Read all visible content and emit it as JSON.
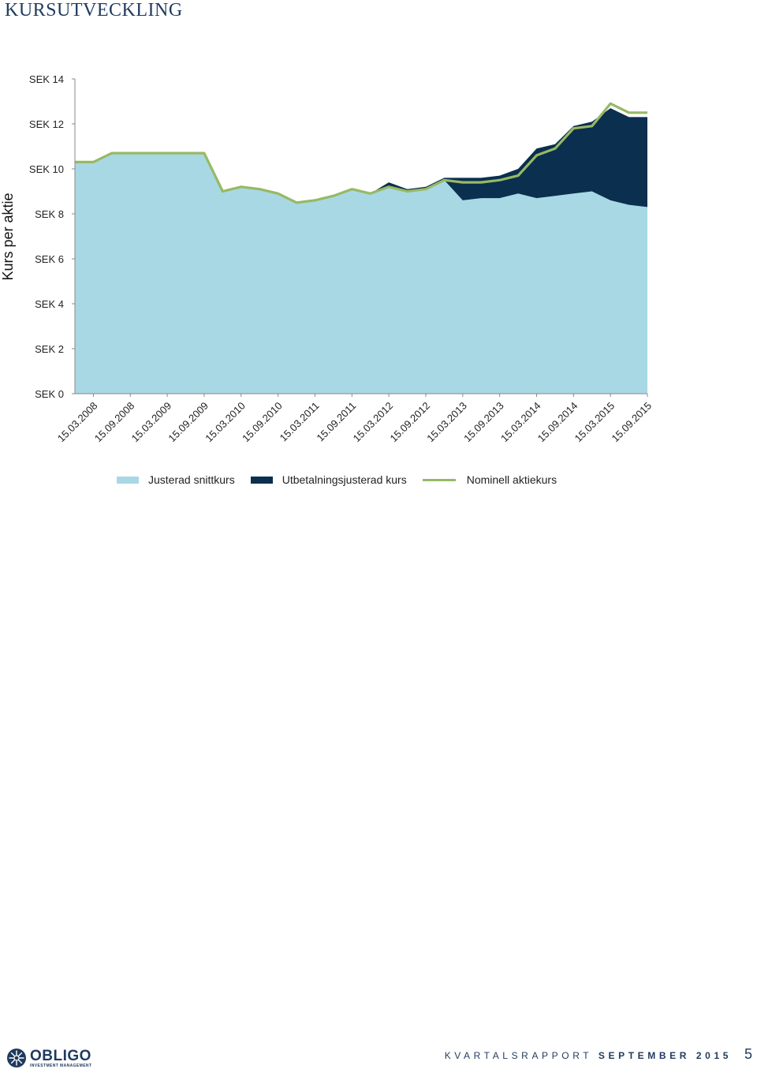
{
  "page": {
    "title": "KURSUTVECKLING",
    "footer_report_light": "KVARTALSRAPPORT",
    "footer_report_bold": "SEPTEMBER 2015",
    "page_number": "5",
    "logo_word": "OBLIGO",
    "logo_sub": "INVESTMENT MANAGEMENT"
  },
  "colors": {
    "adjusted_avg": "#a8d8e4",
    "payout_adjusted": "#0b2f4e",
    "nominal": "#97b964",
    "axis": "#888888",
    "brand": "#1f3a5f"
  },
  "chart_data": {
    "type": "area",
    "title": "",
    "xlabel": "",
    "ylabel": "Kurs per aktie",
    "ylim": [
      0,
      14
    ],
    "yticks": [
      "SEK 0",
      "SEK 2",
      "SEK 4",
      "SEK 6",
      "SEK 8",
      "SEK 10",
      "SEK 12",
      "SEK 14"
    ],
    "ytick_values": [
      0,
      2,
      4,
      6,
      8,
      10,
      12,
      14
    ],
    "x_tick_labels": [
      "15.03.2008",
      "15.09.2008",
      "15.03.2009",
      "15.09.2009",
      "15.03.2010",
      "15.09.2010",
      "15.03.2011",
      "15.09.2011",
      "15.03.2012",
      "15.09.2012",
      "15.03.2013",
      "15.09.2013",
      "15.03.2014",
      "15.09.2014",
      "15.03.2015",
      "15.09.2015"
    ],
    "x": [
      "15.12.2007",
      "15.03.2008",
      "15.06.2008",
      "15.09.2008",
      "15.12.2008",
      "15.03.2009",
      "15.06.2009",
      "15.09.2009",
      "15.12.2009",
      "15.03.2010",
      "15.06.2010",
      "15.09.2010",
      "15.12.2010",
      "15.03.2011",
      "15.06.2011",
      "15.09.2011",
      "15.12.2011",
      "15.03.2012",
      "15.06.2012",
      "15.09.2012",
      "15.12.2012",
      "15.03.2013",
      "15.06.2013",
      "15.09.2013",
      "15.12.2013",
      "15.03.2014",
      "15.06.2014",
      "15.09.2014",
      "15.12.2014",
      "15.03.2015",
      "15.06.2015",
      "15.09.2015"
    ],
    "legend_position": "bottom",
    "grid": false,
    "series": [
      {
        "name": "Justerad snittkurs",
        "kind": "area",
        "values": [
          10.3,
          10.3,
          10.7,
          10.7,
          10.7,
          10.7,
          10.7,
          10.7,
          9.0,
          9.2,
          9.1,
          8.9,
          8.5,
          8.6,
          8.8,
          9.1,
          8.9,
          9.2,
          9.0,
          9.1,
          9.5,
          8.6,
          8.7,
          8.7,
          8.9,
          8.7,
          8.8,
          8.9,
          9.0,
          8.6,
          8.4,
          8.3
        ]
      },
      {
        "name": "Utbetalningsjusterad kurs",
        "kind": "area",
        "values": [
          10.3,
          10.3,
          10.7,
          10.7,
          10.7,
          10.7,
          10.7,
          10.7,
          9.0,
          9.2,
          9.1,
          8.9,
          8.5,
          8.6,
          8.8,
          9.1,
          8.9,
          9.4,
          9.1,
          9.2,
          9.6,
          9.6,
          9.6,
          9.7,
          10.0,
          10.9,
          11.1,
          11.9,
          12.1,
          12.7,
          12.3,
          12.3
        ]
      },
      {
        "name": "Nominell aktiekurs",
        "kind": "line",
        "values": [
          10.3,
          10.3,
          10.7,
          10.7,
          10.7,
          10.7,
          10.7,
          10.7,
          9.0,
          9.2,
          9.1,
          8.9,
          8.5,
          8.6,
          8.8,
          9.1,
          8.9,
          9.2,
          9.0,
          9.1,
          9.5,
          9.4,
          9.4,
          9.5,
          9.7,
          10.6,
          10.9,
          11.8,
          11.9,
          12.9,
          12.5,
          12.5
        ]
      }
    ]
  }
}
